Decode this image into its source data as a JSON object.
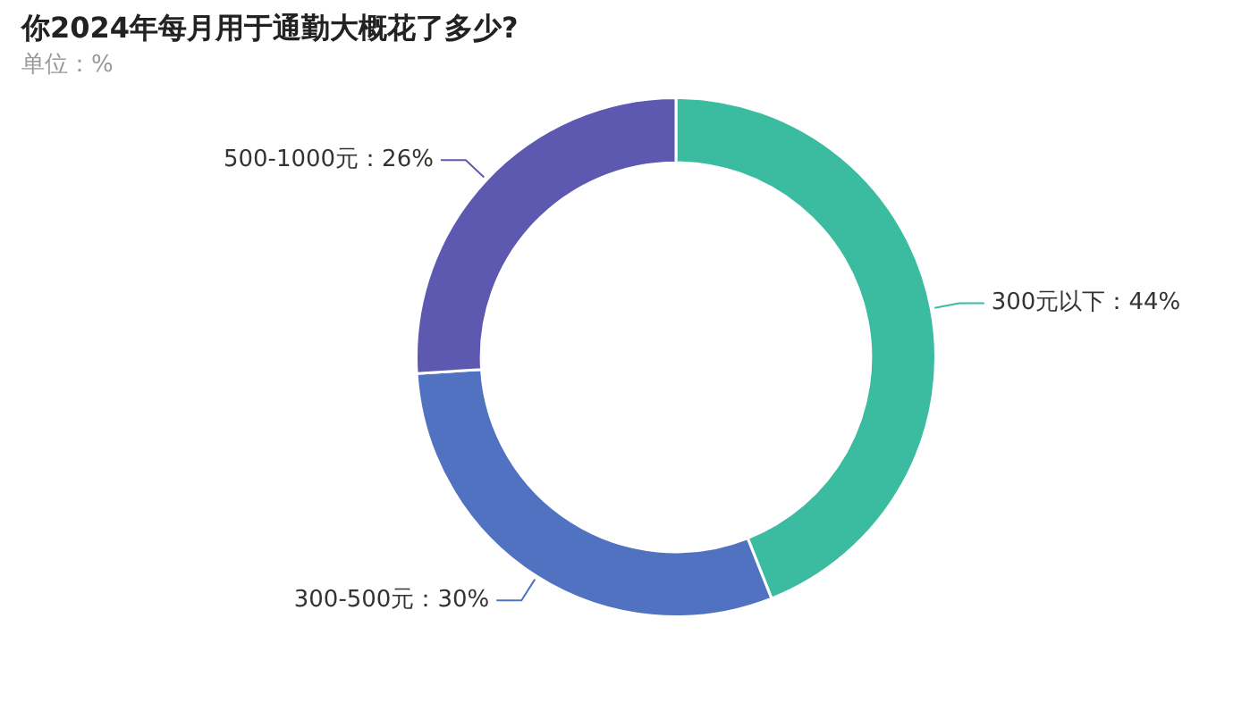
{
  "chart_data": {
    "type": "donut",
    "title": "你2024年每月用于通勤大概花了多少?",
    "subtitle": "单位：%",
    "categories": [
      "300元以下",
      "300-500元",
      "500-1000元"
    ],
    "values": [
      44,
      30,
      26
    ],
    "colors": [
      "#3bbba0",
      "#5072c0",
      "#5d58b0"
    ],
    "value_labels": [
      "44%",
      "30%",
      "26%"
    ],
    "legend": false
  }
}
